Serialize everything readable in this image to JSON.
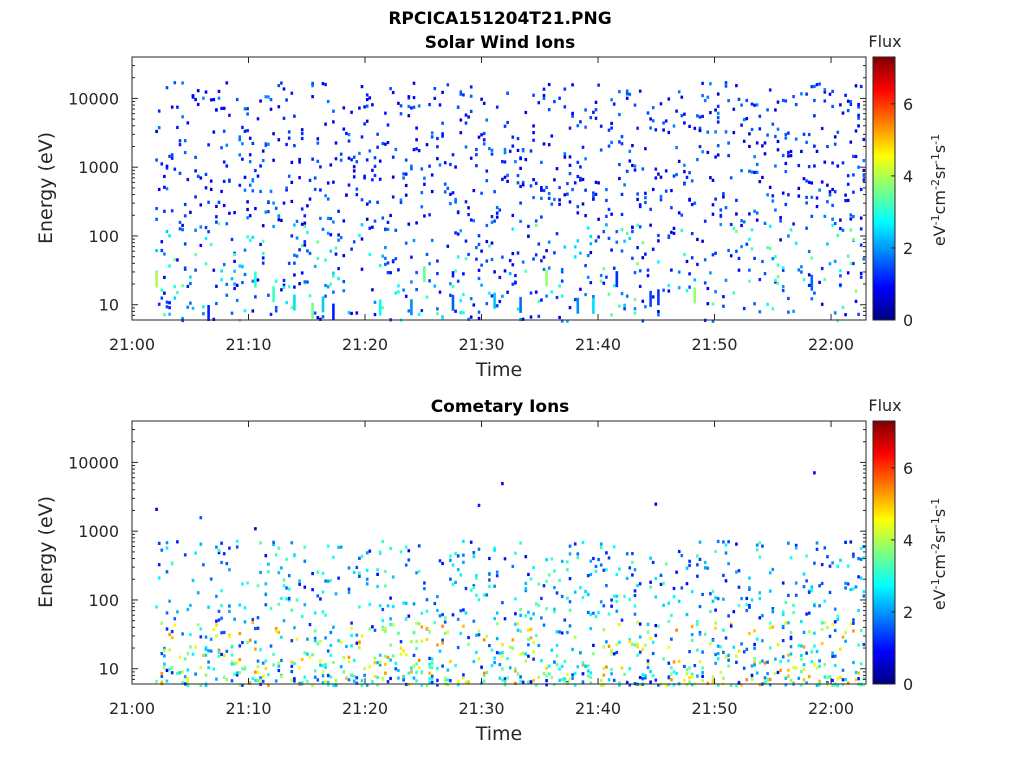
{
  "figure_title": "RPCICA151204T21.PNG",
  "colors": {
    "axis": "#262626",
    "colormap": [
      "#00007f",
      "#0000ff",
      "#007fff",
      "#00ffff",
      "#7fff7f",
      "#ffff00",
      "#ff7f00",
      "#ff0000",
      "#7f0000"
    ]
  },
  "chart_data": [
    {
      "type": "heatmap",
      "title": "Solar Wind Ions",
      "xlabel": "Time",
      "ylabel": "Energy (eV)",
      "x_ticks": [
        "21:00",
        "21:10",
        "21:20",
        "21:30",
        "21:40",
        "21:50",
        "22:00"
      ],
      "y_ticks": [
        "10",
        "100",
        "1000",
        "10000"
      ],
      "y_scale": "log",
      "ylim": [
        6,
        40000
      ],
      "xlim": [
        "21:00",
        "22:03"
      ],
      "data_time_range": [
        "21:02",
        "22:03"
      ],
      "colorbar": {
        "title": "Flux",
        "label": "eV-1cm-2sr-1s-1",
        "range": [
          0,
          7.3
        ],
        "ticks": [
          "0",
          "2",
          "4",
          "6"
        ]
      },
      "description_values": {
        "dominant_flux_range": [
          0.5,
          3
        ],
        "energy_extent": [
          6,
          40000
        ]
      }
    },
    {
      "type": "heatmap",
      "title": "Cometary Ions",
      "xlabel": "Time",
      "ylabel": "Energy (eV)",
      "x_ticks": [
        "21:00",
        "21:10",
        "21:20",
        "21:30",
        "21:40",
        "21:50",
        "22:00"
      ],
      "y_ticks": [
        "10",
        "100",
        "1000",
        "10000"
      ],
      "y_scale": "log",
      "ylim": [
        6,
        40000
      ],
      "xlim": [
        "21:00",
        "22:03"
      ],
      "data_time_range": [
        "21:02",
        "22:03"
      ],
      "colorbar": {
        "title": "Flux",
        "label": "eV-1cm-2sr-1s-1",
        "range": [
          0,
          7.3
        ],
        "ticks": [
          "0",
          "2",
          "4",
          "6"
        ]
      },
      "description_values": {
        "dominant_flux_range": [
          1,
          5
        ],
        "energy_extent": [
          6,
          11000
        ]
      }
    }
  ]
}
